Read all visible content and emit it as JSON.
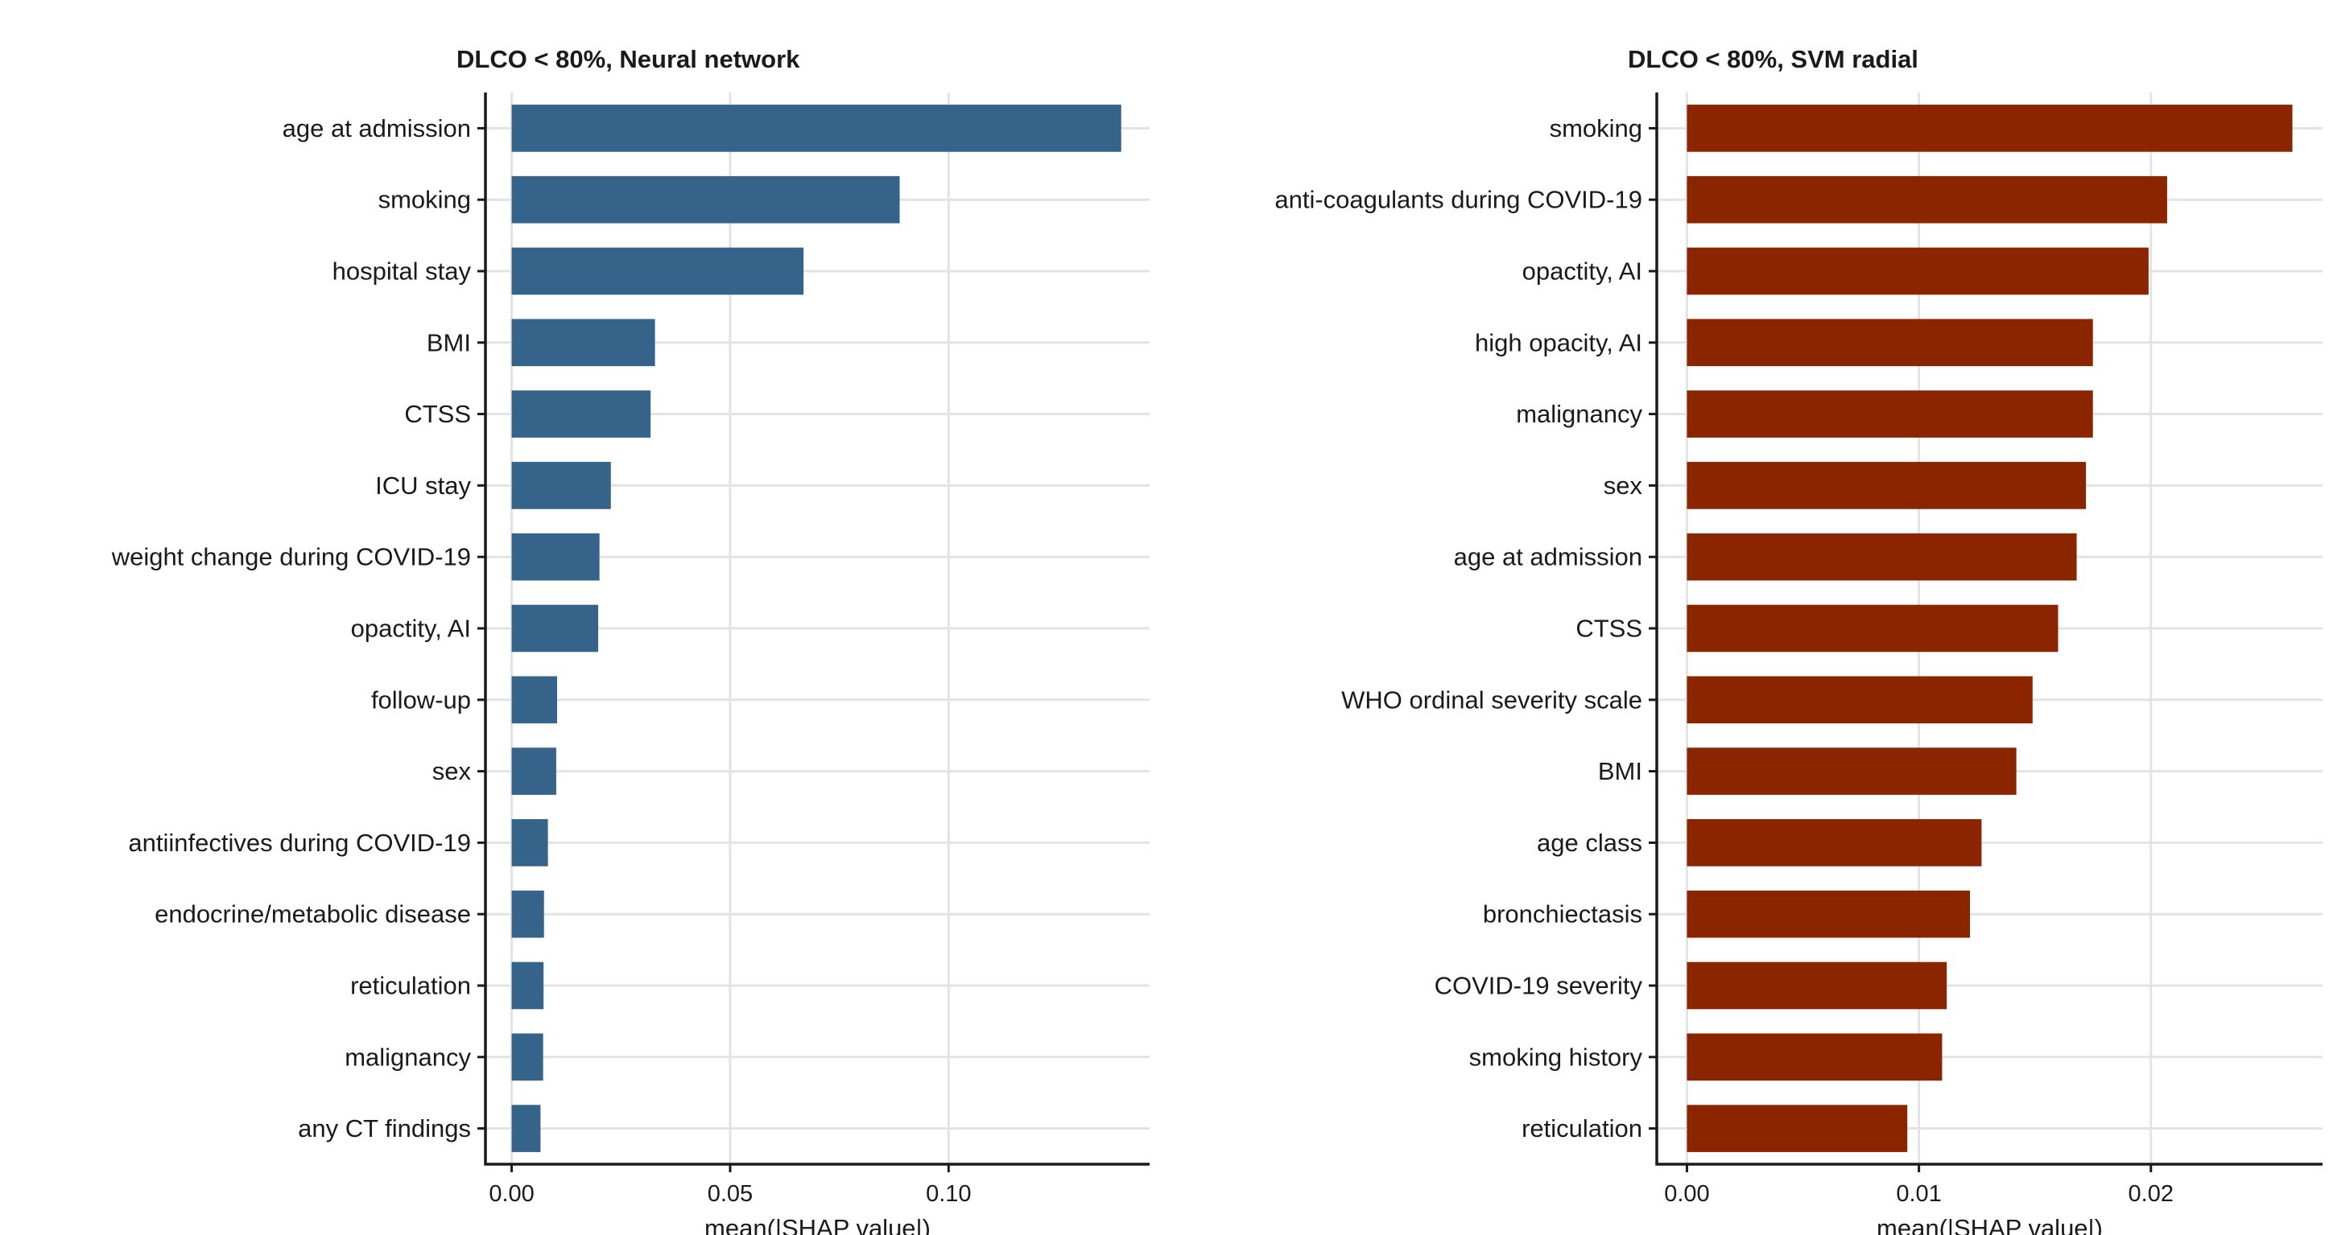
{
  "chart_data": [
    {
      "type": "bar",
      "orientation": "horizontal",
      "title": "DLCO < 80%, Neural network",
      "xlabel": "mean(|SHAP value|)",
      "ylabel": "",
      "xlim": [
        -0.006,
        0.146
      ],
      "xticks": [
        0.0,
        0.05,
        0.1
      ],
      "xtick_labels": [
        "0.00",
        "0.05",
        "0.10"
      ],
      "grid": true,
      "color": "#35638a",
      "categories": [
        "age at admission",
        "smoking",
        "hospital stay",
        "BMI",
        "CTSS",
        "ICU stay",
        "weight change during COVID-19",
        "opactity, AI",
        "follow-up",
        "sex",
        "antiinfectives during COVID-19",
        "endocrine/metabolic disease",
        "reticulation",
        "malignancy",
        "any CT findings"
      ],
      "values": [
        0.1395,
        0.0888,
        0.0668,
        0.0328,
        0.0318,
        0.0227,
        0.0201,
        0.0198,
        0.0104,
        0.0102,
        0.0083,
        0.0074,
        0.0073,
        0.0072,
        0.0066
      ]
    },
    {
      "type": "bar",
      "orientation": "horizontal",
      "title": "DLCO < 80%, SVM radial",
      "xlabel": "mean(|SHAP value|)",
      "ylabel": "",
      "xlim": [
        -0.0013,
        0.0274
      ],
      "xticks": [
        0.0,
        0.01,
        0.02
      ],
      "xtick_labels": [
        "0.00",
        "0.01",
        "0.02"
      ],
      "grid": true,
      "color": "#8b2500",
      "categories": [
        "smoking",
        "anti-coagulants during COVID-19",
        "opactity, AI",
        "high opacity, AI",
        "malignancy",
        "sex",
        "age at admission",
        "CTSS",
        "WHO ordinal severity scale",
        "BMI",
        "age class",
        "bronchiectasis",
        "COVID-19 severity",
        "smoking history",
        "reticulation"
      ],
      "values": [
        0.0261,
        0.0207,
        0.0199,
        0.0175,
        0.0175,
        0.0172,
        0.0168,
        0.016,
        0.0149,
        0.0142,
        0.0127,
        0.0122,
        0.0112,
        0.011,
        0.0095
      ]
    }
  ]
}
